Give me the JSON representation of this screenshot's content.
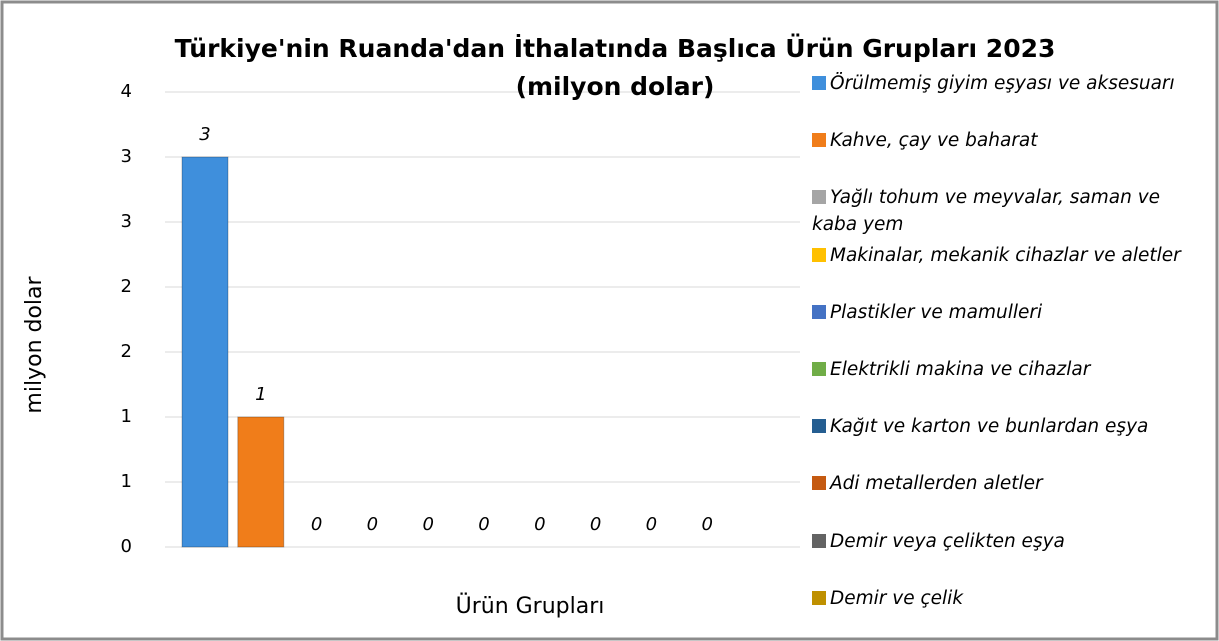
{
  "chart_data": {
    "type": "bar",
    "title": "Türkiye'nin Ruanda'dan İthalatında Başlıca Ürün Grupları 2023 (milyon dolar)",
    "x_label": "Ürün Grupları",
    "y_label": "milyon dolar",
    "categories": [
      null
    ],
    "series": [
      {
        "name": "Örülmemiş giyim eşyası ve aksesuarı",
        "color": "#3f8fdc",
        "values": [
          3
        ]
      },
      {
        "name": "Kahve, çay ve baharat",
        "color": "#f07d1a",
        "values": [
          1
        ]
      },
      {
        "name": "Yağlı tohum ve meyvalar, saman ve kaba yem",
        "color": "#a5a5a5",
        "values": [
          0
        ]
      },
      {
        "name": "Makinalar, mekanik cihazlar ve aletler",
        "color": "#ffc000",
        "values": [
          0
        ]
      },
      {
        "name": "Plastikler ve mamulleri",
        "color": "#4472c4",
        "values": [
          0
        ]
      },
      {
        "name": "Elektrikli makina ve cihazlar",
        "color": "#70ad47",
        "values": [
          0
        ]
      },
      {
        "name": "Kağıt ve karton ve bunlardan eşya",
        "color": "#255e91",
        "values": [
          0
        ]
      },
      {
        "name": "Adi metallerden aletler",
        "color": "#c55a11",
        "values": [
          0
        ]
      },
      {
        "name": "Demir veya çelikten eşya",
        "color": "#636363",
        "values": [
          0
        ]
      },
      {
        "name": "Demir ve çelik",
        "color": "#bf9000",
        "values": [
          0
        ]
      }
    ],
    "ylim": [
      0,
      3.5
    ],
    "yticks": [
      0,
      {
        "value": 0.5,
        "label": "1"
      },
      1,
      {
        "value": 1.5,
        "label": "2"
      },
      2,
      {
        "value": 2.5,
        "label": "3"
      },
      3,
      {
        "value": 3.5,
        "label": "4"
      }
    ],
    "grid": true,
    "legend": "right"
  }
}
